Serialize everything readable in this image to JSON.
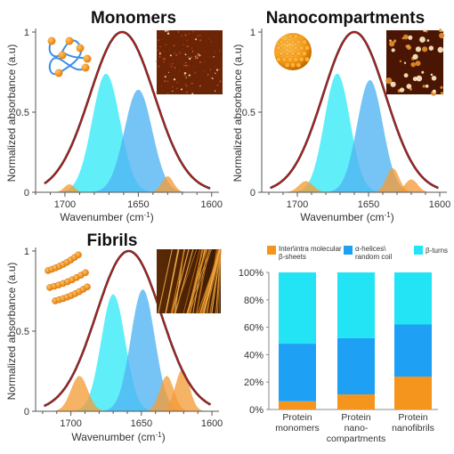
{
  "colors": {
    "turn": "#33eaf7",
    "helix": "#4fb4f2",
    "sheet": "#f39c3a",
    "envelope": "#b81d1d",
    "axis": "#555555",
    "bar_turn": "#22e4f4",
    "bar_helix": "#1ea0f5",
    "bar_sheet": "#f5951e"
  },
  "icons": [
    "coil-chain-icon",
    "sphere-icon",
    "fibril-chains-icon",
    "afm-image-monomers",
    "afm-image-nanocompartments",
    "afm-image-fibrils"
  ],
  "chart_data": [
    {
      "type": "area",
      "title": "Monomers",
      "xlabel": "Wavenumber (cm",
      "xlabel_sup": "-1",
      "xlabel_end": ")",
      "ylabel": "Normalized absorbance (a.u)",
      "xlim": [
        1720,
        1595
      ],
      "ylim": [
        0,
        1
      ],
      "xticks": [
        "1700",
        "1650",
        "1600"
      ],
      "yticks": [
        "0",
        "0.5",
        "1"
      ],
      "envelope": {
        "center": 1661,
        "height": 1.0,
        "sigma": 22
      },
      "series": [
        {
          "component": "turn",
          "center": 1672,
          "height": 0.74,
          "sigma": 9.5
        },
        {
          "component": "helix",
          "center": 1650,
          "height": 0.64,
          "sigma": 9.5
        },
        {
          "component": "sheet",
          "center": 1697,
          "height": 0.05,
          "sigma": 3.5
        },
        {
          "component": "sheet",
          "center": 1630,
          "height": 0.1,
          "sigma": 4
        }
      ]
    },
    {
      "type": "area",
      "title": "Nanocompartments",
      "xlabel": "Wavenumber (cm",
      "xlabel_sup": "-1",
      "xlabel_end": ")",
      "ylabel": "Normalized absorbance (a.u)",
      "xlim": [
        1725,
        1595
      ],
      "ylim": [
        0,
        1
      ],
      "xticks": [
        "1700",
        "1650",
        "1600"
      ],
      "yticks": [
        "0",
        "0.5",
        "1"
      ],
      "envelope": {
        "center": 1660,
        "height": 1.0,
        "sigma": 22
      },
      "series": [
        {
          "component": "turn",
          "center": 1672,
          "height": 0.74,
          "sigma": 9
        },
        {
          "component": "helix",
          "center": 1649,
          "height": 0.7,
          "sigma": 9
        },
        {
          "component": "sheet",
          "center": 1694,
          "height": 0.07,
          "sigma": 5
        },
        {
          "component": "sheet",
          "center": 1633,
          "height": 0.15,
          "sigma": 4.5
        },
        {
          "component": "sheet",
          "center": 1620,
          "height": 0.08,
          "sigma": 4.5
        }
      ]
    },
    {
      "type": "area",
      "title": "Fibrils",
      "xlabel": "Wavenumber (cm",
      "xlabel_sup": "-1",
      "xlabel_end": ")",
      "ylabel": "Normalized absorbance (a.u)",
      "xlim": [
        1725,
        1595
      ],
      "ylim": [
        0,
        1
      ],
      "xticks": [
        "1700",
        "1650",
        "1600"
      ],
      "yticks": [
        "0",
        "0.5",
        "1"
      ],
      "envelope": {
        "center": 1659,
        "height": 1.0,
        "sigma": 23
      },
      "series": [
        {
          "component": "turn",
          "center": 1670,
          "height": 0.73,
          "sigma": 8.5
        },
        {
          "component": "helix",
          "center": 1649,
          "height": 0.76,
          "sigma": 8.5
        },
        {
          "component": "sheet",
          "center": 1694,
          "height": 0.22,
          "sigma": 6
        },
        {
          "component": "sheet",
          "center": 1632,
          "height": 0.22,
          "sigma": 5
        },
        {
          "component": "sheet",
          "center": 1621,
          "height": 0.26,
          "sigma": 5
        }
      ]
    },
    {
      "type": "bar",
      "stacked": true,
      "categories": [
        [
          "Protein",
          "monomers"
        ],
        [
          "Protein",
          "nano-",
          "compartments"
        ],
        [
          "Protein",
          "nanofibrils"
        ]
      ],
      "yticks": [
        "0%",
        "20%",
        "40%",
        "60%",
        "80%",
        "100%"
      ],
      "ylim": [
        0,
        100
      ],
      "legend": [
        {
          "component": "sheet",
          "lines": [
            "Inter\\intra molecular",
            "β-sheets"
          ]
        },
        {
          "component": "helix",
          "lines": [
            "α-helices\\",
            "random coil"
          ]
        },
        {
          "component": "turn",
          "lines": [
            "β-turns"
          ]
        }
      ],
      "series": [
        {
          "component": "sheet",
          "values": [
            6,
            11,
            24
          ]
        },
        {
          "component": "helix",
          "values": [
            42,
            41,
            38
          ]
        },
        {
          "component": "turn",
          "values": [
            52,
            48,
            38
          ]
        }
      ]
    }
  ]
}
